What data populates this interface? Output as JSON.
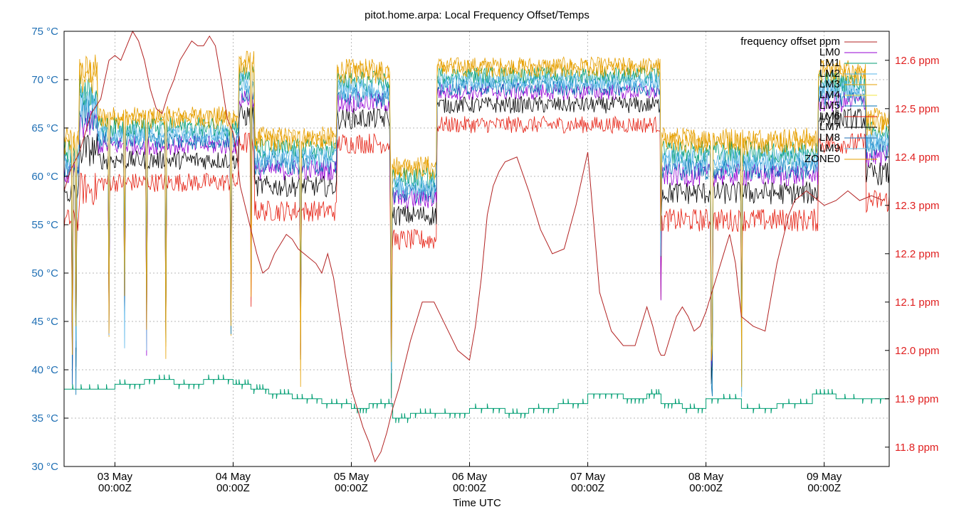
{
  "chart_data": {
    "type": "line",
    "title": "pitot.home.arpa: Local Frequency Offset/Temps",
    "xlabel": "Time UTC",
    "ylabel_left": "",
    "ylabel_right": "",
    "xlim": [
      -0.43,
      6.55
    ],
    "ylim_left": [
      30,
      75
    ],
    "ylim_right": [
      11.76,
      12.66
    ],
    "grid": true,
    "legend_position": "top-right",
    "x_ticks": [
      {
        "x": 0,
        "label": "03 May",
        "sublabel": "00:00Z"
      },
      {
        "x": 1,
        "label": "04 May",
        "sublabel": "00:00Z"
      },
      {
        "x": 2,
        "label": "05 May",
        "sublabel": "00:00Z"
      },
      {
        "x": 3,
        "label": "06 May",
        "sublabel": "00:00Z"
      },
      {
        "x": 4,
        "label": "07 May",
        "sublabel": "00:00Z"
      },
      {
        "x": 5,
        "label": "08 May",
        "sublabel": "00:00Z"
      },
      {
        "x": 6,
        "label": "09 May",
        "sublabel": "00:00Z"
      }
    ],
    "y_left_ticks": [
      "30 °C",
      "35 °C",
      "40 °C",
      "45 °C",
      "50 °C",
      "55 °C",
      "60 °C",
      "65 °C",
      "70 °C",
      "75 °C"
    ],
    "y_left_tick_values": [
      30,
      35,
      40,
      45,
      50,
      55,
      60,
      65,
      70,
      75
    ],
    "y_right_ticks": [
      "11.8 ppm",
      "11.9 ppm",
      "12.0 ppm",
      "12.1 ppm",
      "12.2 ppm",
      "12.3 ppm",
      "12.4 ppm",
      "12.5 ppm",
      "12.6 ppm"
    ],
    "y_right_tick_values": [
      11.8,
      11.9,
      12.0,
      12.1,
      12.2,
      12.3,
      12.4,
      12.5,
      12.6
    ],
    "colors": {
      "left_axis_text": "#1f6fb4",
      "right_axis_text": "#e02020",
      "grid": "#a0a0a0",
      "frequency": "#b22222"
    },
    "legend": [
      {
        "name": "frequency offset ppm",
        "color": "#b22222"
      },
      {
        "name": "LM0",
        "color": "#9400d3"
      },
      {
        "name": "LM1",
        "color": "#009e73"
      },
      {
        "name": "LM2",
        "color": "#56b4e9"
      },
      {
        "name": "LM3",
        "color": "#e69f00"
      },
      {
        "name": "LM4",
        "color": "#f0e442"
      },
      {
        "name": "LM5",
        "color": "#0072b2"
      },
      {
        "name": "LM6",
        "color": "#e51e10"
      },
      {
        "name": "LM7",
        "color": "#000000"
      },
      {
        "name": "LM8",
        "color": "#1f6fb4"
      },
      {
        "name": "LM9",
        "color": "#6ec0e0"
      },
      {
        "name": "ZONE0",
        "color": "#e6a000"
      }
    ],
    "frequency_offset_ppm": {
      "name": "frequency offset ppm",
      "x": [
        -0.43,
        -0.38,
        -0.3,
        -0.2,
        -0.12,
        -0.05,
        0.0,
        0.05,
        0.1,
        0.15,
        0.2,
        0.25,
        0.3,
        0.35,
        0.4,
        0.45,
        0.5,
        0.55,
        0.6,
        0.65,
        0.7,
        0.75,
        0.8,
        0.85,
        0.9,
        0.95,
        1.0,
        1.03,
        1.06,
        1.1,
        1.15,
        1.2,
        1.25,
        1.3,
        1.35,
        1.4,
        1.45,
        1.5,
        1.55,
        1.6,
        1.7,
        1.75,
        1.8,
        1.85,
        1.9,
        1.95,
        2.0,
        2.05,
        2.1,
        2.15,
        2.2,
        2.25,
        2.3,
        2.35,
        2.4,
        2.45,
        2.5,
        2.55,
        2.6,
        2.7,
        2.8,
        2.9,
        3.0,
        3.05,
        3.1,
        3.15,
        3.2,
        3.25,
        3.3,
        3.4,
        3.5,
        3.6,
        3.7,
        3.8,
        3.9,
        4.0,
        4.1,
        4.2,
        4.3,
        4.4,
        4.5,
        4.55,
        4.6,
        4.62,
        4.65,
        4.7,
        4.75,
        4.8,
        4.85,
        4.9,
        4.95,
        5.0,
        5.05,
        5.1,
        5.15,
        5.2,
        5.25,
        5.3,
        5.4,
        5.5,
        5.6,
        5.7,
        5.75,
        5.8,
        5.85,
        5.9,
        6.0,
        6.1,
        6.2,
        6.3,
        6.4,
        6.5
      ],
      "y": [
        12.33,
        12.37,
        12.41,
        12.49,
        12.52,
        12.6,
        12.61,
        12.6,
        12.63,
        12.66,
        12.64,
        12.6,
        12.54,
        12.5,
        12.49,
        12.53,
        12.56,
        12.6,
        12.62,
        12.64,
        12.63,
        12.63,
        12.65,
        12.63,
        12.56,
        12.48,
        12.45,
        12.41,
        12.34,
        12.3,
        12.25,
        12.2,
        12.16,
        12.17,
        12.2,
        12.22,
        12.24,
        12.23,
        12.21,
        12.2,
        12.18,
        12.16,
        12.2,
        12.15,
        12.07,
        11.99,
        11.92,
        11.88,
        11.84,
        11.81,
        11.77,
        11.79,
        11.83,
        11.88,
        11.92,
        11.97,
        12.02,
        12.06,
        12.1,
        12.1,
        12.05,
        12.0,
        11.98,
        12.05,
        12.15,
        12.28,
        12.34,
        12.37,
        12.39,
        12.4,
        12.33,
        12.25,
        12.2,
        12.21,
        12.3,
        12.41,
        12.12,
        12.04,
        12.01,
        12.01,
        12.09,
        12.05,
        12.0,
        11.99,
        11.99,
        12.03,
        12.07,
        12.09,
        12.07,
        12.04,
        12.05,
        12.08,
        12.12,
        12.16,
        12.2,
        12.24,
        12.18,
        12.07,
        12.05,
        12.04,
        12.18,
        12.28,
        12.31,
        12.32,
        12.33,
        12.32,
        12.3,
        12.31,
        12.33,
        12.31,
        12.32,
        12.31
      ]
    },
    "temperature_bands_c": [
      {
        "x_start": -0.43,
        "x_end": -0.3,
        "low": 55,
        "high": 66
      },
      {
        "x_start": -0.3,
        "x_end": -0.15,
        "low": 58,
        "high": 74
      },
      {
        "x_start": -0.15,
        "x_end": 1.05,
        "low": 59,
        "high": 68
      },
      {
        "x_start": 1.05,
        "x_end": 1.18,
        "low": 63,
        "high": 74
      },
      {
        "x_start": 1.18,
        "x_end": 1.88,
        "low": 56,
        "high": 66
      },
      {
        "x_start": 1.88,
        "x_end": 2.33,
        "low": 63,
        "high": 73
      },
      {
        "x_start": 2.33,
        "x_end": 2.72,
        "low": 53,
        "high": 63
      },
      {
        "x_start": 2.72,
        "x_end": 4.62,
        "low": 65,
        "high": 73
      },
      {
        "x_start": 4.62,
        "x_end": 5.95,
        "low": 55,
        "high": 66
      },
      {
        "x_start": 5.95,
        "x_end": 6.35,
        "low": 63,
        "high": 73
      },
      {
        "x_start": 6.35,
        "x_end": 6.55,
        "low": 57,
        "high": 68
      }
    ],
    "dips": [
      -0.36,
      -0.33,
      -0.05,
      0.08,
      0.27,
      0.43,
      0.98,
      1.15,
      1.57,
      2.34,
      4.62,
      5.05,
      5.3
    ],
    "lm1_steps": {
      "name": "LM1",
      "x": [
        -0.43,
        0.0,
        0.25,
        0.5,
        0.75,
        1.0,
        1.15,
        1.3,
        1.5,
        1.75,
        2.0,
        2.15,
        2.35,
        2.5,
        2.75,
        3.0,
        3.3,
        3.5,
        3.75,
        4.0,
        4.3,
        4.5,
        4.62,
        4.8,
        5.0,
        5.3,
        5.6,
        5.9,
        6.1,
        6.55
      ],
      "y": [
        38,
        38.5,
        39,
        38.5,
        39,
        38.5,
        38,
        37.5,
        37,
        36.5,
        36,
        36.5,
        35,
        35.5,
        35.5,
        36,
        35.5,
        36,
        36.5,
        37.5,
        37,
        37.5,
        36.5,
        36,
        37,
        36,
        36.5,
        37.5,
        37,
        38
      ]
    }
  }
}
